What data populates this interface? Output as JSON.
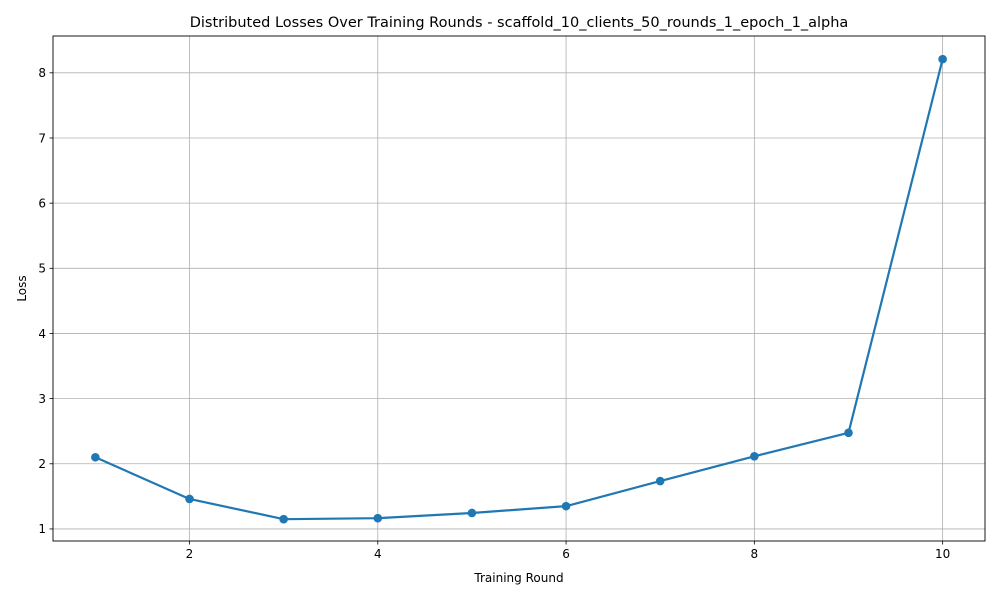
{
  "chart_data": {
    "type": "line",
    "title": "Distributed Losses Over Training Rounds  - scaffold_10_clients_50_rounds_1_epoch_1_alpha",
    "xlabel": "Training Round",
    "ylabel": "Loss",
    "x": [
      1,
      2,
      3,
      4,
      5,
      6,
      7,
      8,
      9,
      10
    ],
    "series": [
      {
        "values": [
          2.1,
          1.46,
          1.15,
          1.165,
          1.245,
          1.35,
          1.735,
          2.115,
          2.475,
          8.21
        ]
      }
    ],
    "xlim": [
      0.55,
      10.45
    ],
    "ylim": [
      0.815,
      8.565
    ],
    "xticks": [
      2,
      4,
      6,
      8,
      10
    ],
    "yticks": [
      1,
      2,
      3,
      4,
      5,
      6,
      7,
      8
    ],
    "grid": true,
    "markers": "circle",
    "line_color": "#1f77b4",
    "grid_color": "#b0b0b0"
  }
}
